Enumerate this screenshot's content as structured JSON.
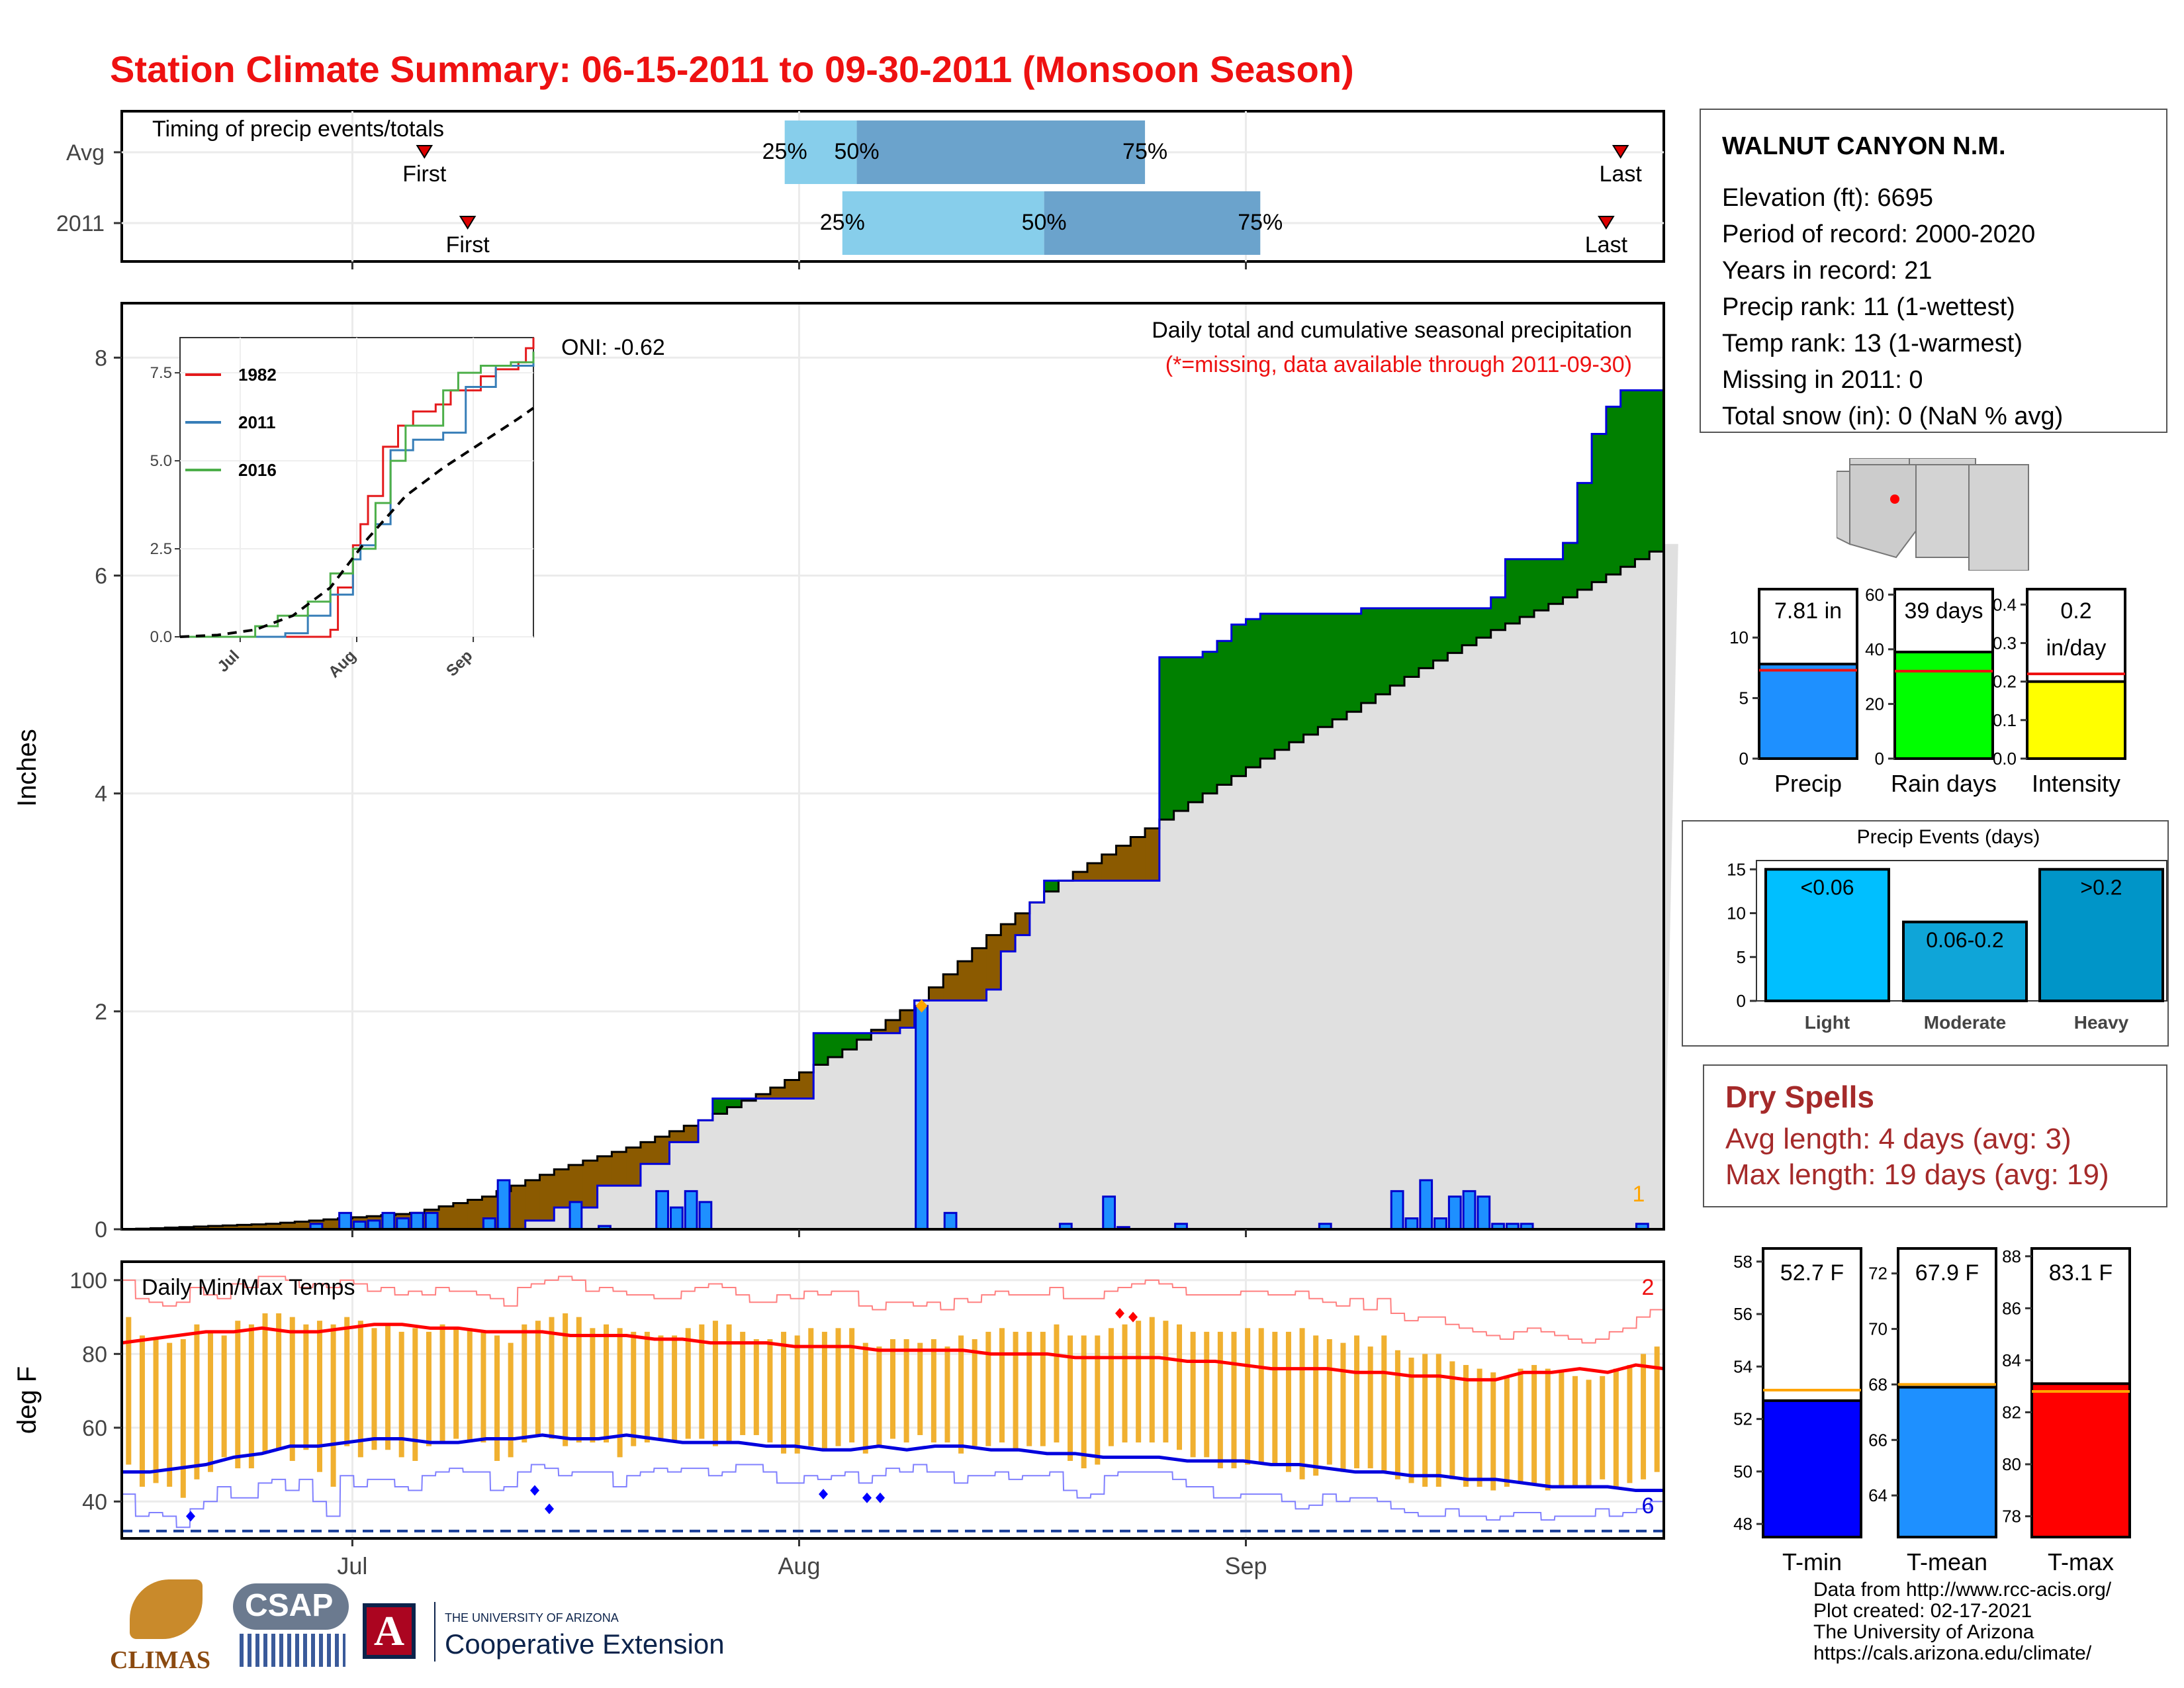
{
  "title": "Station Climate Summary: 06-15-2011 to 09-30-2011 (Monsoon Season)",
  "colors": {
    "title": "#ee1111",
    "above_avg_fill": "#008000",
    "below_avg_fill": "#8b5a00",
    "climatology_fill": "#e0e0e0",
    "daily_bar": "#1e90ff",
    "daily_bar_edge": "#0000cc",
    "temp_bar": "#f0b030",
    "avg_max": "#ff0000",
    "avg_min": "#0000dd",
    "quartile_light": "#87ceeb",
    "quartile_dark": "#6ba3cc"
  },
  "timing_panel": {
    "label": "Timing of precip events/totals",
    "rows": [
      {
        "name": "Avg",
        "first_label": "First",
        "last_label": "Last",
        "q25_label": "25%",
        "q50_label": "50%",
        "q75_label": "75%"
      },
      {
        "name": "2011",
        "first_label": "First",
        "last_label": "Last",
        "q25_label": "25%",
        "q50_label": "50%",
        "q75_label": "75%"
      }
    ]
  },
  "main_panel": {
    "ylabel": "Inches",
    "oni_label": "ONI: -0.62",
    "subtitle": "Daily total and cumulative seasonal precipitation",
    "missing_note": "(*=missing, data available through 2011-09-30)",
    "outlier_count": "1",
    "y_ticks": [
      "0",
      "2",
      "4",
      "6",
      "8"
    ]
  },
  "inset": {
    "y_ticks": [
      "0.0",
      "2.5",
      "5.0",
      "7.5"
    ],
    "x_ticks": [
      "Jul",
      "Aug",
      "Sep"
    ],
    "legend": [
      {
        "name": "1982",
        "color": "#e41a1c"
      },
      {
        "name": "2011",
        "color": "#377eb8"
      },
      {
        "name": "2016",
        "color": "#4daf4a"
      }
    ]
  },
  "temp_panel": {
    "label": "Daily Min/Max Temps",
    "ylabel": "deg F",
    "y_ticks": [
      "40",
      "60",
      "80",
      "100"
    ],
    "record_high_count": "2",
    "record_low_count": "6"
  },
  "x_axis": {
    "ticks": [
      "Jul",
      "Aug",
      "Sep"
    ]
  },
  "station": {
    "name": "WALNUT CANYON N.M.",
    "lines": [
      "Elevation (ft): 6695",
      "Period of record: 2000-2020",
      "Years in record: 21",
      "Precip rank: 11 (1-wettest)",
      "Temp rank: 13 (1-warmest)",
      "Missing in 2011: 0",
      "Total snow (in): 0 (NaN % avg)"
    ]
  },
  "mini_bars": [
    {
      "label": "Precip",
      "value_label": "7.81 in",
      "ticks": [
        "0",
        "5",
        "10"
      ],
      "color": "#1e90ff"
    },
    {
      "label": "Rain days",
      "value_label": "39 days",
      "ticks": [
        "0",
        "20",
        "40",
        "60"
      ],
      "color": "#00ff00"
    },
    {
      "label": "Intensity",
      "value_label": "0.2\nin/day",
      "ticks": [
        "0.0",
        "0.1",
        "0.2",
        "0.3",
        "0.4"
      ],
      "color": "#ffff00"
    }
  ],
  "events_panel": {
    "title": "Precip Events (days)",
    "ticks": [
      "0",
      "5",
      "10",
      "15"
    ],
    "bars": [
      {
        "label": "Light",
        "inner": "<0.06",
        "color": "#00bfff"
      },
      {
        "label": "Moderate",
        "inner": "0.06-0.2",
        "color": "#0fa5d8"
      },
      {
        "label": "Heavy",
        "inner": ">0.2",
        "color": "#0095c8"
      }
    ]
  },
  "dry_spells": {
    "title": "Dry Spells",
    "avg": "Avg length: 4 days (avg: 3)",
    "max": "Max length: 19 days (avg: 19)"
  },
  "temp_bars": [
    {
      "label": "T-min",
      "value_label": "52.7 F",
      "ticks": [
        "48",
        "50",
        "52",
        "54",
        "56",
        "58"
      ],
      "color": "#0000ff"
    },
    {
      "label": "T-mean",
      "value_label": "67.9 F",
      "ticks": [
        "64",
        "66",
        "68",
        "70",
        "72"
      ],
      "color": "#1e90ff"
    },
    {
      "label": "T-max",
      "value_label": "83.1 F",
      "ticks": [
        "78",
        "80",
        "82",
        "84",
        "86",
        "88"
      ],
      "color": "#ff0000"
    }
  ],
  "credits": {
    "line1": "Data from http://www.rcc-acis.org/",
    "line2": "Plot created: 02-17-2021",
    "line3": "The University of Arizona",
    "line4": "https://cals.arizona.edu/climate/"
  },
  "logos": {
    "climas": "CLIMAS",
    "csap": "CSAP",
    "ua_small": "THE UNIVERSITY OF ARIZONA",
    "ua_big": "Cooperative Extension"
  },
  "chart_data": [
    {
      "type": "area",
      "name": "cumulative_precip",
      "x_start": "2011-06-15",
      "x_end": "2011-09-30",
      "ylim": [
        0,
        8.5
      ],
      "climatology_cumulative": [
        [
          0,
          0
        ],
        [
          10,
          0.05
        ],
        [
          20,
          0.15
        ],
        [
          25,
          0.3
        ],
        [
          30,
          0.55
        ],
        [
          35,
          0.75
        ],
        [
          40,
          1.0
        ],
        [
          45,
          1.3
        ],
        [
          50,
          1.65
        ],
        [
          55,
          2.1
        ],
        [
          60,
          2.7
        ],
        [
          65,
          3.2
        ],
        [
          70,
          3.6
        ],
        [
          75,
          4.0
        ],
        [
          80,
          4.4
        ],
        [
          85,
          4.75
        ],
        [
          90,
          5.15
        ],
        [
          95,
          5.5
        ],
        [
          100,
          5.8
        ],
        [
          105,
          6.15
        ],
        [
          110,
          6.5
        ],
        [
          112,
          6.8
        ]
      ],
      "observed_cumulative": [
        [
          0,
          0
        ],
        [
          28,
          0.08
        ],
        [
          30,
          0.2
        ],
        [
          33,
          0.4
        ],
        [
          36,
          0.6
        ],
        [
          38,
          0.8
        ],
        [
          40,
          1.0
        ],
        [
          41,
          1.2
        ],
        [
          47,
          1.2
        ],
        [
          48,
          1.8
        ],
        [
          54,
          1.85
        ],
        [
          55,
          2.1
        ],
        [
          60,
          2.2
        ],
        [
          61,
          2.55
        ],
        [
          62,
          2.7
        ],
        [
          63,
          3.0
        ],
        [
          64,
          3.2
        ],
        [
          71,
          3.2
        ],
        [
          72,
          5.25
        ],
        [
          75,
          5.3
        ],
        [
          76,
          5.4
        ],
        [
          77,
          5.55
        ],
        [
          78,
          5.6
        ],
        [
          79,
          5.65
        ],
        [
          85,
          5.65
        ],
        [
          86,
          5.7
        ],
        [
          95,
          5.8
        ],
        [
          96,
          6.15
        ],
        [
          100,
          6.3
        ],
        [
          101,
          6.85
        ],
        [
          102,
          7.3
        ],
        [
          103,
          7.55
        ],
        [
          104,
          7.7
        ],
        [
          112,
          7.8
        ]
      ]
    },
    {
      "type": "bar",
      "name": "daily_precip",
      "x": [
        20,
        22,
        23,
        24,
        25,
        26,
        27,
        28,
        32,
        33,
        38,
        40,
        44,
        45,
        46,
        47,
        62,
        64,
        72,
        75,
        76,
        80,
        90,
        95,
        96,
        97,
        98,
        99,
        100,
        101,
        102,
        103,
        104,
        112
      ],
      "values": [
        0.05,
        0.15,
        0.07,
        0.08,
        0.15,
        0.1,
        0.15,
        0.15,
        0.1,
        0.45,
        0.25,
        0.03,
        0.35,
        0.2,
        0.35,
        0.25,
        2.05,
        0.15,
        0.05,
        0.3,
        0.02,
        0.05,
        0.05,
        0.35,
        0.1,
        0.45,
        0.1,
        0.3,
        0.35,
        0.3,
        0.05,
        0.05,
        0.05,
        0.05
      ]
    },
    {
      "type": "line",
      "name": "inset_cumulative",
      "x_ticks": [
        "Jul",
        "Aug",
        "Sep"
      ],
      "ylim": [
        0,
        8.5
      ],
      "series": [
        {
          "name": "1982",
          "values": [
            [
              0,
              0
            ],
            [
              40,
              0.2
            ],
            [
              42,
              1.4
            ],
            [
              46,
              2.6
            ],
            [
              48,
              3.2
            ],
            [
              50,
              4.0
            ],
            [
              54,
              5.4
            ],
            [
              58,
              6.0
            ],
            [
              62,
              6.4
            ],
            [
              68,
              6.6
            ],
            [
              72,
              7.0
            ],
            [
              80,
              7.4
            ],
            [
              84,
              7.6
            ],
            [
              90,
              7.8
            ],
            [
              92,
              8.2
            ],
            [
              94,
              8.5
            ]
          ]
        },
        {
          "name": "2011",
          "values": [
            [
              0,
              0
            ],
            [
              28,
              0.1
            ],
            [
              34,
              0.6
            ],
            [
              40,
              1.2
            ],
            [
              46,
              2.2
            ],
            [
              48,
              2.6
            ],
            [
              52,
              3.2
            ],
            [
              56,
              5.3
            ],
            [
              62,
              5.6
            ],
            [
              70,
              5.8
            ],
            [
              76,
              7.1
            ],
            [
              84,
              7.7
            ],
            [
              94,
              7.8
            ]
          ]
        },
        {
          "name": "2016",
          "values": [
            [
              0,
              0
            ],
            [
              20,
              0.3
            ],
            [
              26,
              0.6
            ],
            [
              34,
              1.0
            ],
            [
              40,
              1.8
            ],
            [
              46,
              2.5
            ],
            [
              52,
              3.8
            ],
            [
              56,
              5.0
            ],
            [
              60,
              6.0
            ],
            [
              66,
              6.0
            ],
            [
              70,
              7.0
            ],
            [
              74,
              7.5
            ],
            [
              80,
              7.7
            ],
            [
              88,
              7.8
            ],
            [
              94,
              8.1
            ]
          ]
        },
        {
          "name": "average",
          "values": [
            [
              0,
              0
            ],
            [
              10,
              0.05
            ],
            [
              20,
              0.2
            ],
            [
              30,
              0.6
            ],
            [
              40,
              1.4
            ],
            [
              50,
              2.8
            ],
            [
              60,
              4.0
            ],
            [
              70,
              4.8
            ],
            [
              80,
              5.5
            ],
            [
              90,
              6.2
            ],
            [
              94,
              6.5
            ]
          ]
        }
      ]
    },
    {
      "type": "bar",
      "name": "daily_temps",
      "ylim": [
        30,
        105
      ],
      "max": [
        90,
        85,
        84,
        83,
        84,
        88,
        86,
        85,
        89,
        88,
        91,
        91,
        90,
        88,
        89,
        88,
        90,
        89,
        87,
        88,
        86,
        87,
        86,
        88,
        87,
        87,
        86,
        85,
        83,
        88,
        89,
        90,
        91,
        90,
        87,
        88,
        87,
        86,
        86,
        85,
        85,
        87,
        88,
        89,
        88,
        86,
        84,
        84,
        86,
        85,
        87,
        86,
        87,
        87,
        83,
        82,
        84,
        84,
        83,
        84,
        82,
        85,
        84,
        86,
        87,
        86,
        86,
        86,
        88,
        85,
        85,
        85,
        87,
        88,
        89,
        90,
        89,
        88,
        86,
        86,
        86,
        86,
        87,
        87,
        86,
        86,
        87,
        85,
        84,
        83,
        85,
        82,
        85,
        81,
        79,
        80,
        80,
        78,
        77,
        76,
        75,
        74,
        76,
        77,
        76,
        75,
        74,
        73,
        74,
        76,
        77,
        80,
        82
      ],
      "min": [
        50,
        44,
        45,
        44,
        41,
        46,
        48,
        52,
        49,
        49,
        53,
        54,
        51,
        54,
        48,
        44,
        55,
        52,
        54,
        54,
        52,
        51,
        55,
        56,
        57,
        56,
        56,
        51,
        52,
        56,
        58,
        57,
        55,
        56,
        56,
        56,
        52,
        55,
        56,
        57,
        56,
        57,
        57,
        55,
        56,
        58,
        58,
        56,
        53,
        53,
        55,
        54,
        55,
        56,
        53,
        55,
        57,
        56,
        58,
        56,
        56,
        53,
        55,
        55,
        56,
        54,
        55,
        55,
        56,
        51,
        49,
        50,
        55,
        56,
        56,
        56,
        56,
        54,
        52,
        52,
        49,
        49,
        50,
        50,
        50,
        48,
        46,
        47,
        50,
        48,
        49,
        49,
        48,
        46,
        45,
        44,
        44,
        46,
        44,
        44,
        43,
        44,
        45,
        45,
        43,
        44,
        44,
        44,
        46,
        44,
        45,
        46,
        48
      ],
      "avg_max": [
        83,
        84,
        85,
        86,
        86,
        87,
        86,
        86,
        87,
        88,
        88,
        87,
        87,
        86,
        86,
        86,
        85,
        85,
        85,
        84,
        84,
        83,
        83,
        83,
        82,
        82,
        82,
        81,
        81,
        81,
        81,
        80,
        80,
        80,
        79,
        79,
        79,
        79,
        78,
        78,
        77,
        76,
        76,
        76,
        75,
        75,
        74,
        74,
        73,
        73,
        75,
        75,
        76,
        75,
        77,
        76
      ],
      "avg_min": [
        48,
        48,
        49,
        50,
        52,
        53,
        55,
        55,
        56,
        57,
        57,
        56,
        56,
        57,
        57,
        58,
        57,
        57,
        58,
        57,
        56,
        56,
        56,
        55,
        55,
        54,
        54,
        55,
        54,
        55,
        55,
        54,
        54,
        53,
        53,
        52,
        52,
        52,
        51,
        51,
        51,
        50,
        50,
        49,
        48,
        48,
        47,
        47,
        46,
        46,
        45,
        44,
        44,
        44,
        43,
        43
      ]
    },
    {
      "type": "bar",
      "name": "timing",
      "rows": [
        {
          "name": "Avg",
          "first": 21,
          "q25": 46,
          "q50": 51,
          "q75": 71,
          "last": 104
        },
        {
          "name": "2011",
          "first": 24,
          "q25": 50,
          "q50": 64,
          "q75": 79,
          "last": 103
        }
      ]
    },
    {
      "type": "bar",
      "name": "season_totals",
      "categories": [
        "Precip",
        "Rain days",
        "Intensity"
      ],
      "values": [
        7.81,
        39,
        0.2
      ],
      "averages": [
        7.3,
        32,
        0.22
      ],
      "ylims": [
        [
          0,
          14
        ],
        [
          0,
          62
        ],
        [
          0,
          0.44
        ]
      ]
    },
    {
      "type": "bar",
      "name": "precip_events",
      "categories": [
        "Light",
        "Moderate",
        "Heavy"
      ],
      "values": [
        15,
        9,
        15
      ],
      "ylim": [
        0,
        16
      ]
    },
    {
      "type": "bar",
      "name": "season_temps",
      "categories": [
        "T-min",
        "T-mean",
        "T-max"
      ],
      "values": [
        52.7,
        67.9,
        83.1
      ],
      "averages": [
        53.1,
        68.0,
        82.8
      ],
      "ylims": [
        [
          47.5,
          58.5
        ],
        [
          62.5,
          72.9
        ],
        [
          77.2,
          88.3
        ]
      ]
    }
  ]
}
